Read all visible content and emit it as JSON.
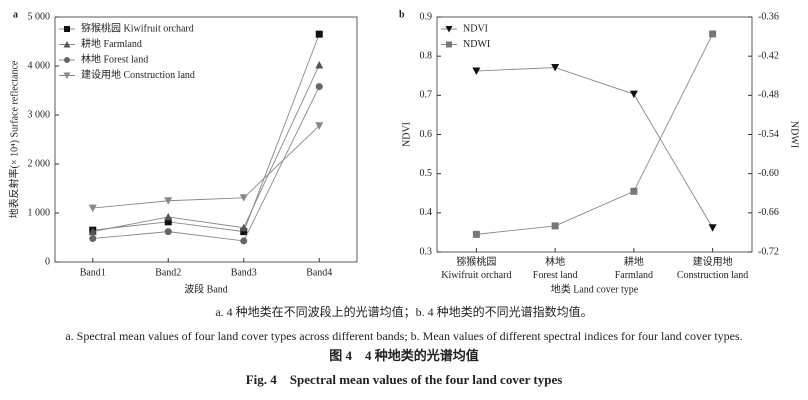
{
  "chart_data": [
    {
      "type": "line",
      "panel_label": "a",
      "y_label": "地表反射率(× 10⁴) Surface reflectance",
      "x_label": "波段  Band",
      "categories": [
        "Band1",
        "Band2",
        "Band3",
        "Band4"
      ],
      "ylim": [
        0,
        5000
      ],
      "yticks": [
        0,
        {
          "value": 1000,
          "label": "1 000"
        },
        {
          "value": 2000,
          "label": "2 000"
        },
        {
          "value": 3000,
          "label": "3 000"
        },
        {
          "value": 4000,
          "label": "4 000"
        },
        {
          "value": 5000,
          "label": "5 000"
        }
      ],
      "legend": "upper left",
      "series": [
        {
          "name": "猕猴桃园 Kiwifruit orchard",
          "color": "#111111",
          "marker": "square",
          "values": [
            650,
            820,
            620,
            4650
          ]
        },
        {
          "name": "耕地 Farmland",
          "color": "#555555",
          "marker": "triangle-up",
          "values": [
            620,
            920,
            700,
            4020
          ]
        },
        {
          "name": "林地 Forest land",
          "color": "#666666",
          "marker": "circle",
          "values": [
            480,
            620,
            430,
            3580
          ]
        },
        {
          "name": "建设用地 Construction land",
          "color": "#888888",
          "marker": "triangle-down",
          "values": [
            1100,
            1250,
            1310,
            2780
          ]
        }
      ]
    },
    {
      "type": "line",
      "panel_label": "b",
      "y_label": "NDVI",
      "y2_label": "NDWI",
      "x_label": "地类  Land cover type",
      "categories": [
        "猕猴桃园\nKiwifruit orchard",
        "林地\nForest land",
        "耕地\nFarmland",
        "建设用地\nConstruction land"
      ],
      "ylim": [
        0.3,
        0.9
      ],
      "yticks": [
        0.3,
        0.4,
        0.5,
        0.6,
        0.7,
        0.8,
        0.9
      ],
      "y2lim": [
        -0.72,
        -0.36
      ],
      "y2ticks": [
        -0.72,
        -0.66,
        {
          "value": -0.6,
          "label": "-0.60"
        },
        -0.54,
        -0.48,
        -0.42,
        -0.36
      ],
      "legend": "upper left",
      "series": [
        {
          "name": "NDVI",
          "color": "#111111",
          "marker": "triangle-down",
          "values": [
            0.762,
            0.771,
            0.703,
            0.362
          ]
        },
        {
          "name": "NDWI",
          "color": "#777777",
          "marker": "square",
          "axis": "y2",
          "values": [
            -0.693,
            -0.68,
            -0.627,
            -0.386
          ]
        }
      ]
    }
  ],
  "captions": {
    "cn_note": "a. 4 种地类在不同波段上的光谱均值；b. 4 种地类的不同光谱指数均值。",
    "en_note": "a. Spectral mean values of four land cover types across different bands; b. Mean values of different spectral indices for four land cover types.",
    "cn_title": "图 4　4 种地类的光谱均值",
    "en_title": "Fig. 4　Spectral mean values of the four land cover types"
  }
}
